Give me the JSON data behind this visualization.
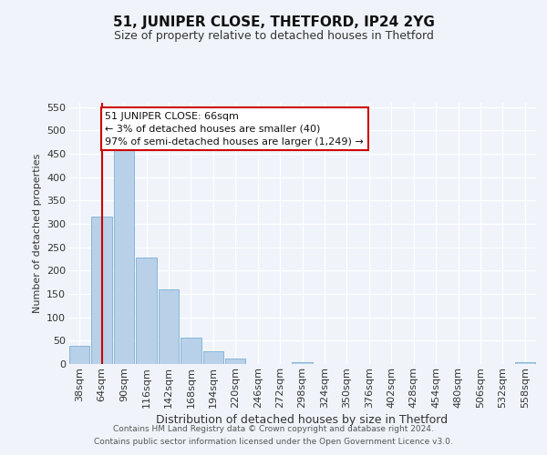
{
  "title": "51, JUNIPER CLOSE, THETFORD, IP24 2YG",
  "subtitle": "Size of property relative to detached houses in Thetford",
  "xlabel": "Distribution of detached houses by size in Thetford",
  "ylabel": "Number of detached properties",
  "bar_labels": [
    "38sqm",
    "64sqm",
    "90sqm",
    "116sqm",
    "142sqm",
    "168sqm",
    "194sqm",
    "220sqm",
    "246sqm",
    "272sqm",
    "298sqm",
    "324sqm",
    "350sqm",
    "376sqm",
    "402sqm",
    "428sqm",
    "454sqm",
    "480sqm",
    "506sqm",
    "532sqm",
    "558sqm"
  ],
  "bar_values": [
    38,
    315,
    460,
    228,
    160,
    57,
    27,
    12,
    0,
    0,
    3,
    0,
    0,
    0,
    0,
    0,
    0,
    0,
    0,
    0,
    3
  ],
  "bar_color": "#b8d0e8",
  "bar_edge_color": "#7bafd4",
  "vline_x": 1.0,
  "vline_color": "#cc0000",
  "annotation_text": "51 JUNIPER CLOSE: 66sqm\n← 3% of detached houses are smaller (40)\n97% of semi-detached houses are larger (1,249) →",
  "annotation_box_color": "#ffffff",
  "annotation_box_edge": "#cc0000",
  "ylim": [
    0,
    560
  ],
  "yticks": [
    0,
    50,
    100,
    150,
    200,
    250,
    300,
    350,
    400,
    450,
    500,
    550
  ],
  "footer_line1": "Contains HM Land Registry data © Crown copyright and database right 2024.",
  "footer_line2": "Contains public sector information licensed under the Open Government Licence v3.0.",
  "background_color": "#f0f4fa",
  "plot_background": "#f0f4fa",
  "title_fontsize": 11,
  "subtitle_fontsize": 9,
  "xlabel_fontsize": 9,
  "ylabel_fontsize": 8,
  "tick_fontsize": 8,
  "footer_fontsize": 6.5
}
